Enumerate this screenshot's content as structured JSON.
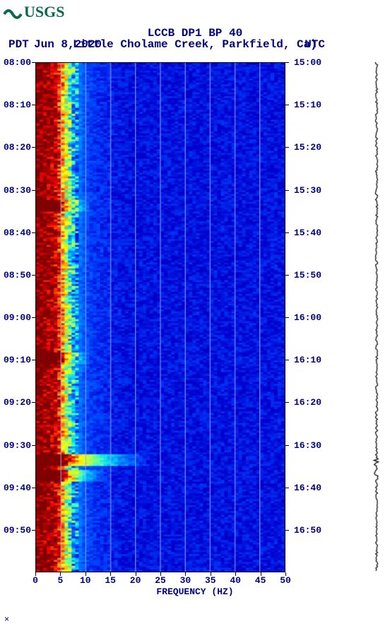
{
  "logo_text": "USGS",
  "logo_fg": "#0a6b4a",
  "header": {
    "title": "LCCB DP1 BP 40",
    "location": "Little Cholame Creek, Parkfield, Ca)",
    "date": "Jun 8,2020",
    "left_tz": "PDT",
    "right_tz": "UTC",
    "title_fontsize": 14,
    "color": "#000080"
  },
  "spectrogram": {
    "type": "heatmap",
    "xlim": [
      0,
      50
    ],
    "ylim_pdt": [
      "08:00",
      "10:00"
    ],
    "ylim_utc": [
      "15:00",
      "17:00"
    ],
    "xlabel": "FREQUENCY (HZ)",
    "xticks": [
      0,
      5,
      10,
      15,
      20,
      25,
      30,
      35,
      40,
      45,
      50
    ],
    "ytick_step_min": 10,
    "yticks_left": [
      "08:00",
      "08:10",
      "08:20",
      "08:30",
      "08:40",
      "08:50",
      "09:00",
      "09:10",
      "09:20",
      "09:30",
      "09:40",
      "09:50"
    ],
    "yticks_right": [
      "15:00",
      "15:10",
      "15:20",
      "15:30",
      "15:40",
      "15:50",
      "16:00",
      "16:10",
      "16:20",
      "16:30",
      "16:40",
      "16:50"
    ],
    "grid_x_every": 5,
    "grid_color": "#a0a0ff",
    "nx": 70,
    "ny": 260,
    "colormap": [
      "#7f0000",
      "#b30000",
      "#e60000",
      "#ff3300",
      "#ff8000",
      "#ffbf00",
      "#ffff00",
      "#bfff40",
      "#40ffbf",
      "#00d0ff",
      "#0080ff",
      "#0040ff",
      "#0000d0",
      "#000090"
    ],
    "freq_band_power": [
      1.0,
      1.0,
      0.98,
      0.96,
      0.94,
      0.9,
      0.8,
      0.65,
      0.5,
      0.38,
      0.3,
      0.25,
      0.21,
      0.18,
      0.16,
      0.15,
      0.14,
      0.13,
      0.13,
      0.12,
      0.12,
      0.11,
      0.11,
      0.11,
      0.1,
      0.1,
      0.1,
      0.1,
      0.1,
      0.1,
      0.1,
      0.1,
      0.1,
      0.1,
      0.1,
      0.1,
      0.1,
      0.1,
      0.1,
      0.1,
      0.1,
      0.1,
      0.1,
      0.1,
      0.1,
      0.1,
      0.1,
      0.1,
      0.1,
      0.1,
      0.1,
      0.1,
      0.1,
      0.1,
      0.1,
      0.1,
      0.1,
      0.1,
      0.1,
      0.1,
      0.1,
      0.1,
      0.1,
      0.1,
      0.1,
      0.1,
      0.1,
      0.1,
      0.1,
      0.1
    ],
    "events": [
      {
        "time_frac": 0.78,
        "freq_extent": 0.45,
        "intensity": 0.55
      },
      {
        "time_frac": 0.81,
        "freq_extent": 0.28,
        "intensity": 0.45
      },
      {
        "time_frac": 0.28,
        "freq_extent": 0.22,
        "intensity": 0.35
      },
      {
        "time_frac": 0.58,
        "freq_extent": 0.22,
        "intensity": 0.35
      }
    ],
    "low_freq_noise_seed": 42
  },
  "amplitude_trace": {
    "color": "#000000",
    "baseline_width": 1.2,
    "samples": 360,
    "event_positions": [
      0.78,
      0.81
    ],
    "event_amp": 4.0,
    "noise_amp": 1.6
  }
}
